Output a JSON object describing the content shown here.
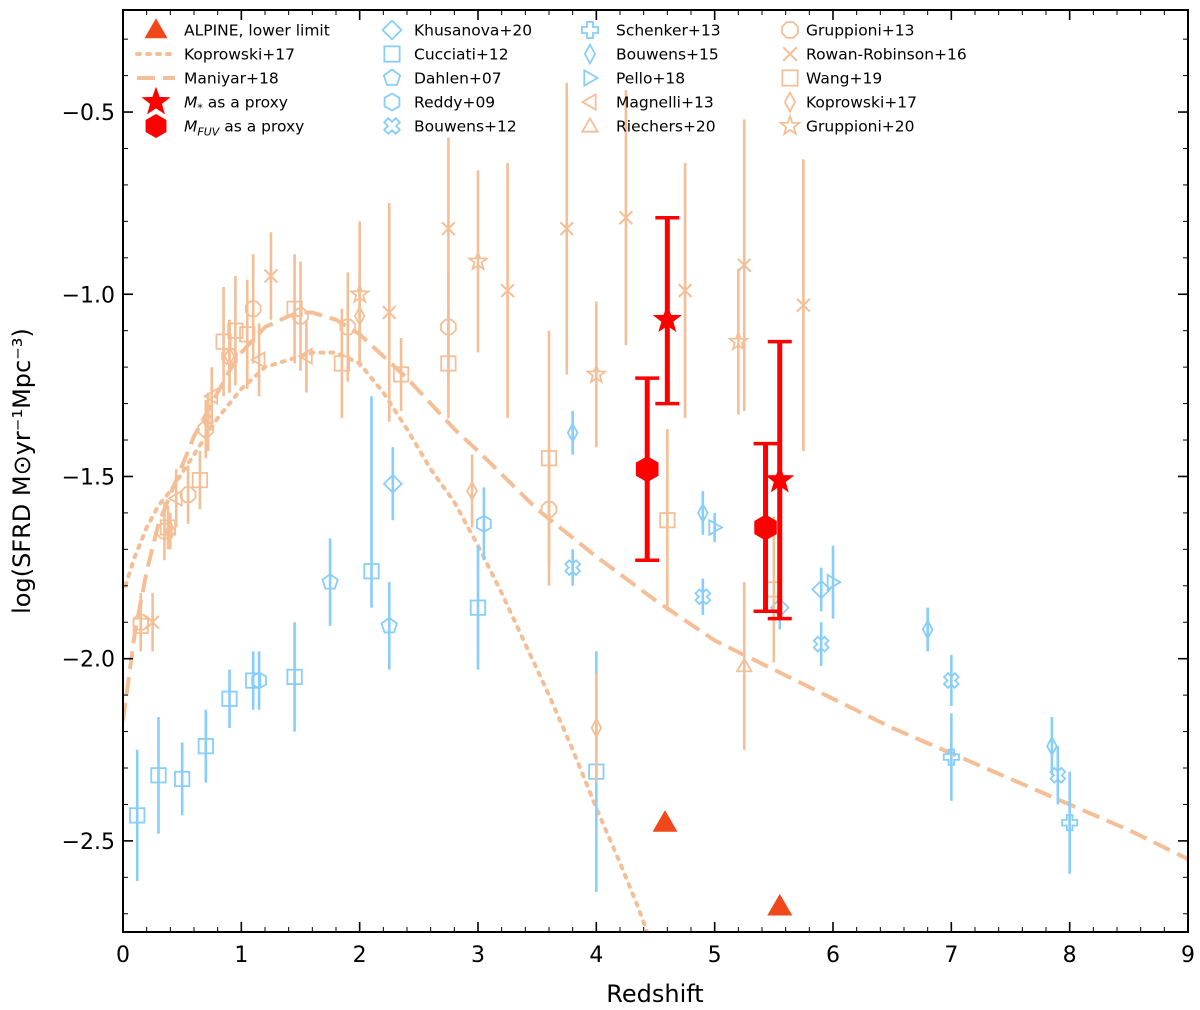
{
  "chart_data": {
    "type": "scatter",
    "xlabel": "Redshift",
    "ylabel": "log(SFRD M⊙yr⁻¹Mpc⁻³)",
    "xlim": [
      0,
      9
    ],
    "ylim": [
      -2.75,
      -0.22
    ],
    "xticks": [
      0,
      1,
      2,
      3,
      4,
      5,
      6,
      7,
      8,
      9
    ],
    "xtick_labels": [
      "0",
      "1",
      "2",
      "3",
      "4",
      "5",
      "6",
      "7",
      "8",
      "9"
    ],
    "yticks": [
      -2.5,
      -2.0,
      -1.5,
      -1.0,
      -0.5
    ],
    "ytick_labels": [
      "−2.5",
      "−2.0",
      "−1.5",
      "−1.0",
      "−0.5"
    ],
    "colors": {
      "blue": "#87CEFA",
      "orange": "#F4BF96",
      "red": "#FF0000",
      "alpine": "#F2471A",
      "black": "#000000"
    },
    "curves": [
      {
        "name": "Koprowski+17",
        "style": "dotted",
        "points": [
          [
            0.02,
            -1.8
          ],
          [
            0.1,
            -1.72
          ],
          [
            0.2,
            -1.64
          ],
          [
            0.3,
            -1.58
          ],
          [
            0.4,
            -1.54
          ],
          [
            0.5,
            -1.49
          ],
          [
            0.6,
            -1.44
          ],
          [
            0.7,
            -1.39
          ],
          [
            0.8,
            -1.34
          ],
          [
            0.9,
            -1.3
          ],
          [
            1.0,
            -1.26
          ],
          [
            1.1,
            -1.23
          ],
          [
            1.2,
            -1.2
          ],
          [
            1.3,
            -1.19
          ],
          [
            1.4,
            -1.18
          ],
          [
            1.5,
            -1.17
          ],
          [
            1.6,
            -1.16
          ],
          [
            1.8,
            -1.16
          ],
          [
            2.0,
            -1.19
          ],
          [
            2.2,
            -1.27
          ],
          [
            2.4,
            -1.37
          ],
          [
            2.6,
            -1.48
          ],
          [
            2.8,
            -1.57
          ],
          [
            3.0,
            -1.69
          ],
          [
            3.2,
            -1.82
          ],
          [
            3.4,
            -1.96
          ],
          [
            3.6,
            -2.1
          ],
          [
            3.8,
            -2.25
          ],
          [
            4.0,
            -2.41
          ],
          [
            4.2,
            -2.56
          ],
          [
            4.35,
            -2.68
          ],
          [
            4.43,
            -2.75
          ]
        ]
      },
      {
        "name": "Maniyar+18",
        "style": "dashed",
        "points": [
          [
            0.0,
            -2.17
          ],
          [
            0.05,
            -2.05
          ],
          [
            0.1,
            -1.93
          ],
          [
            0.2,
            -1.76
          ],
          [
            0.3,
            -1.63
          ],
          [
            0.4,
            -1.55
          ],
          [
            0.5,
            -1.47
          ],
          [
            0.6,
            -1.39
          ],
          [
            0.7,
            -1.33
          ],
          [
            0.8,
            -1.27
          ],
          [
            0.9,
            -1.21
          ],
          [
            1.0,
            -1.16
          ],
          [
            1.2,
            -1.09
          ],
          [
            1.4,
            -1.06
          ],
          [
            1.5,
            -1.05
          ],
          [
            1.6,
            -1.05
          ],
          [
            1.8,
            -1.07
          ],
          [
            2.0,
            -1.11
          ],
          [
            2.2,
            -1.17
          ],
          [
            2.4,
            -1.23
          ],
          [
            2.6,
            -1.3
          ],
          [
            2.8,
            -1.37
          ],
          [
            3.0,
            -1.43
          ],
          [
            3.5,
            -1.59
          ],
          [
            4.0,
            -1.72
          ],
          [
            4.5,
            -1.84
          ],
          [
            5.0,
            -1.95
          ],
          [
            5.5,
            -2.03
          ],
          [
            6.0,
            -2.11
          ],
          [
            6.5,
            -2.19
          ],
          [
            7.0,
            -2.26
          ],
          [
            7.5,
            -2.33
          ],
          [
            8.0,
            -2.4
          ],
          [
            8.5,
            -2.47
          ],
          [
            9.0,
            -2.55
          ]
        ]
      }
    ],
    "series": [
      {
        "name": "Khusanova+20",
        "color": "blue",
        "marker": "diamond",
        "points": [
          [
            2.28,
            -1.52,
            0.1,
            0.1
          ],
          [
            5.55,
            -1.86,
            0.06,
            0.06
          ],
          [
            5.9,
            -1.81,
            0.06,
            0.06
          ]
        ]
      },
      {
        "name": "Cucciati+12",
        "color": "blue",
        "marker": "square",
        "points": [
          [
            0.12,
            -2.43,
            0.18,
            0.18
          ],
          [
            0.3,
            -2.32,
            0.16,
            0.16
          ],
          [
            0.5,
            -2.33,
            0.1,
            0.1
          ],
          [
            0.7,
            -2.24,
            0.1,
            0.1
          ],
          [
            0.9,
            -2.11,
            0.08,
            0.08
          ],
          [
            1.1,
            -2.06,
            0.08,
            0.08
          ],
          [
            1.45,
            -2.05,
            0.15,
            0.15
          ],
          [
            2.1,
            -1.76,
            0.48,
            0.1
          ],
          [
            3.0,
            -1.86,
            0.17,
            0.17
          ],
          [
            4.0,
            -2.31,
            0.33,
            0.33
          ]
        ]
      },
      {
        "name": "Dahlen+07",
        "color": "blue",
        "marker": "pentagon",
        "points": [
          [
            1.75,
            -1.79,
            0.12,
            0.12
          ],
          [
            2.25,
            -1.91,
            0.12,
            0.12
          ]
        ]
      },
      {
        "name": "Reddy+09",
        "color": "blue",
        "marker": "hexagon",
        "points": [
          [
            1.15,
            -2.06,
            0.08,
            0.08
          ],
          [
            3.05,
            -1.63,
            0.1,
            0.1
          ]
        ]
      },
      {
        "name": "Bouwens+12",
        "color": "blue",
        "marker": "cross_x",
        "points": [
          [
            3.8,
            -1.75,
            0.05,
            0.05
          ],
          [
            4.9,
            -1.83,
            0.05,
            0.05
          ],
          [
            5.9,
            -1.96,
            0.06,
            0.06
          ],
          [
            7.0,
            -2.06,
            0.07,
            0.07
          ],
          [
            7.9,
            -2.32,
            0.08,
            0.08
          ]
        ]
      },
      {
        "name": "Schenker+13",
        "color": "blue",
        "marker": "plus",
        "points": [
          [
            7.0,
            -2.27,
            0.12,
            0.12
          ],
          [
            8.0,
            -2.45,
            0.14,
            0.14
          ]
        ]
      },
      {
        "name": "Bouwens+15",
        "color": "blue",
        "marker": "thin_diamond",
        "points": [
          [
            3.8,
            -1.38,
            0.06,
            0.06
          ],
          [
            4.9,
            -1.6,
            0.06,
            0.06
          ],
          [
            6.8,
            -1.92,
            0.06,
            0.06
          ],
          [
            7.85,
            -2.24,
            0.08,
            0.08
          ]
        ]
      },
      {
        "name": "Pello+18",
        "color": "blue",
        "marker": "triangle_right",
        "points": [
          [
            5.0,
            -1.64,
            0.04,
            0.04
          ],
          [
            6.0,
            -1.79,
            0.1,
            0.1
          ]
        ]
      },
      {
        "name": "Magnelli+13",
        "color": "orange",
        "marker": "triangle_left",
        "points": [
          [
            0.45,
            -1.56,
            0.08,
            0.08
          ],
          [
            0.75,
            -1.28,
            0.08,
            0.08
          ],
          [
            1.15,
            -1.18,
            0.1,
            0.1
          ],
          [
            1.55,
            -1.17,
            0.1,
            0.1
          ]
        ]
      },
      {
        "name": "Riechers+20",
        "color": "orange",
        "marker": "triangle_up",
        "points": [
          [
            5.25,
            -2.02,
            0.23,
            0.23
          ]
        ]
      },
      {
        "name": "Gruppioni+13",
        "color": "orange",
        "marker": "octagon",
        "points": [
          [
            0.15,
            -1.9,
            0.08,
            0.08
          ],
          [
            0.35,
            -1.65,
            0.08,
            0.08
          ],
          [
            0.55,
            -1.55,
            0.08,
            0.08
          ],
          [
            0.7,
            -1.37,
            0.08,
            0.08
          ],
          [
            0.9,
            -1.17,
            0.1,
            0.1
          ],
          [
            1.1,
            -1.04,
            0.15,
            0.15
          ],
          [
            1.5,
            -1.06,
            0.15,
            0.15
          ],
          [
            1.9,
            -1.09,
            0.15,
            0.15
          ],
          [
            2.75,
            -1.09,
            0.15,
            0.15
          ],
          [
            3.6,
            -1.59,
            0.15,
            0.15
          ]
        ]
      },
      {
        "name": "Rowan-Robinson+16",
        "color": "orange",
        "marker": "x",
        "points": [
          [
            0.25,
            -1.9,
            0.08,
            0.08
          ],
          [
            1.25,
            -0.95,
            0.12,
            0.12
          ],
          [
            2.25,
            -1.05,
            0.3,
            0.3
          ],
          [
            2.75,
            -0.82,
            0.25,
            0.25
          ],
          [
            3.25,
            -0.99,
            0.35,
            0.35
          ],
          [
            3.75,
            -0.82,
            0.4,
            0.4
          ],
          [
            4.25,
            -0.79,
            0.35,
            0.35
          ],
          [
            4.75,
            -0.99,
            0.35,
            0.35
          ],
          [
            5.25,
            -0.92,
            0.4,
            0.4
          ],
          [
            5.75,
            -1.03,
            0.4,
            0.4
          ]
        ]
      },
      {
        "name": "Wang+19",
        "color": "orange",
        "marker": "square",
        "points": [
          [
            0.15,
            -1.91,
            0.06,
            0.06
          ],
          [
            0.38,
            -1.64,
            0.06,
            0.06
          ],
          [
            0.65,
            -1.51,
            0.08,
            0.08
          ],
          [
            0.85,
            -1.13,
            0.15,
            0.15
          ],
          [
            0.95,
            -1.1,
            0.15,
            0.15
          ],
          [
            1.05,
            -1.11,
            0.15,
            0.15
          ],
          [
            1.45,
            -1.04,
            0.15,
            0.15
          ],
          [
            1.85,
            -1.19,
            0.15,
            0.15
          ],
          [
            2.35,
            -1.22,
            0.1,
            0.1
          ],
          [
            2.75,
            -1.19,
            0.15,
            0.15
          ],
          [
            3.6,
            -1.45,
            0.35,
            0.35
          ],
          [
            4.6,
            -1.62,
            0.25,
            0.25
          ],
          [
            5.5,
            -1.81,
            0.2,
            0.2
          ]
        ]
      },
      {
        "name": "Koprowski+17",
        "color": "orange",
        "marker": "thin_diamond",
        "points": [
          [
            0.4,
            -1.65,
            0.05,
            0.05
          ],
          [
            0.72,
            -1.35,
            0.08,
            0.08
          ],
          [
            0.9,
            -1.17,
            0.1,
            0.1
          ],
          [
            2.0,
            -1.06,
            0.12,
            0.12
          ],
          [
            2.95,
            -1.54,
            0.1,
            0.1
          ],
          [
            4.0,
            -2.19,
            0.15,
            0.15
          ]
        ]
      },
      {
        "name": "Gruppioni+20",
        "color": "orange",
        "marker": "star",
        "points": [
          [
            2.0,
            -1.0,
            0.2,
            0.2
          ],
          [
            3.0,
            -0.91,
            0.25,
            0.25
          ],
          [
            4.0,
            -1.22,
            0.2,
            0.2
          ],
          [
            5.2,
            -1.13,
            0.2,
            0.2
          ]
        ]
      }
    ],
    "alpine": [
      {
        "name": "M_* as a proxy",
        "marker": "star",
        "points": [
          [
            4.6,
            -1.07,
            0.28,
            0.23
          ],
          [
            5.55,
            -1.51,
            0.38,
            0.38
          ]
        ]
      },
      {
        "name": "M_FUV as a proxy",
        "marker": "hexagon",
        "points": [
          [
            4.43,
            -1.48,
            0.25,
            0.25
          ],
          [
            5.43,
            -1.64,
            0.23,
            0.23
          ]
        ]
      },
      {
        "name": "ALPINE, lower limit",
        "marker": "triangle_up",
        "points": [
          [
            4.58,
            -2.45
          ],
          [
            5.55,
            -2.68
          ]
        ]
      }
    ],
    "legend": {
      "col1": [
        {
          "label": "ALPINE, lower limit",
          "kind": "marker",
          "marker": "triangle_up",
          "color": "alpine",
          "fill": true
        },
        {
          "label": "Koprowski+17",
          "kind": "line",
          "style": "dotted",
          "color": "orange"
        },
        {
          "label": "Maniyar+18",
          "kind": "line",
          "style": "dashed",
          "color": "orange"
        },
        {
          "label_main": "M",
          "label_sub": "*",
          "label_rest": " as a proxy",
          "kind": "marker",
          "marker": "star",
          "color": "red",
          "fill": true
        },
        {
          "label_main": "M",
          "label_sub": "FUV",
          "label_rest": " as a proxy",
          "kind": "marker",
          "marker": "hexagon",
          "color": "red",
          "fill": true
        }
      ],
      "col2": [
        {
          "label": "Khusanova+20",
          "marker": "diamond",
          "color": "blue"
        },
        {
          "label": "Cucciati+12",
          "marker": "square",
          "color": "blue"
        },
        {
          "label": "Dahlen+07",
          "marker": "pentagon",
          "color": "blue"
        },
        {
          "label": "Reddy+09",
          "marker": "hexagon",
          "color": "blue"
        },
        {
          "label": "Bouwens+12",
          "marker": "cross_x",
          "color": "blue"
        }
      ],
      "col3": [
        {
          "label": "Schenker+13",
          "marker": "plus",
          "color": "blue"
        },
        {
          "label": "Bouwens+15",
          "marker": "thin_diamond",
          "color": "blue"
        },
        {
          "label": "Pello+18",
          "marker": "triangle_right",
          "color": "blue"
        },
        {
          "label": "Magnelli+13",
          "marker": "triangle_left",
          "color": "orange"
        },
        {
          "label": "Riechers+20",
          "marker": "triangle_up",
          "color": "orange"
        }
      ],
      "col4": [
        {
          "label": "Gruppioni+13",
          "marker": "octagon",
          "color": "orange"
        },
        {
          "label": "Rowan-Robinson+16",
          "marker": "x",
          "color": "orange"
        },
        {
          "label": "Wang+19",
          "marker": "square",
          "color": "orange"
        },
        {
          "label": "Koprowski+17",
          "marker": "thin_diamond",
          "color": "orange"
        },
        {
          "label": "Gruppioni+20",
          "marker": "star",
          "color": "orange"
        }
      ]
    }
  }
}
